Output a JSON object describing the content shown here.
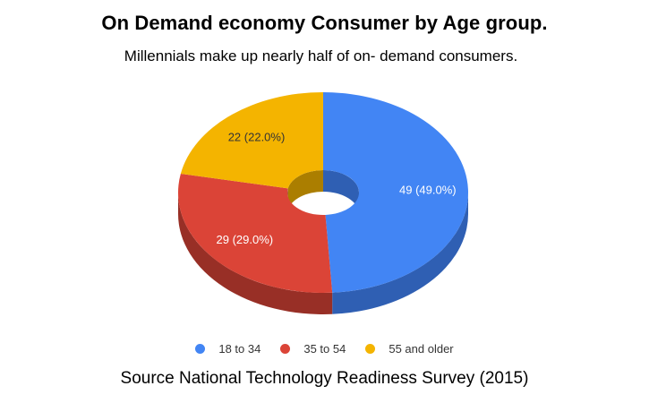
{
  "title": "On Demand economy Consumer by Age group.",
  "subtitle": "Millennials make up nearly half of on- demand consumers.",
  "source": "Source National Technology Readiness Survey (2015)",
  "chart_data": {
    "type": "pie",
    "style": "3d-donut",
    "categories": [
      "18 to 34",
      "35 to 54",
      "55 and older"
    ],
    "values": [
      49,
      29,
      22
    ],
    "data_labels": [
      "49 (49.0%)",
      "29 (29.0%)",
      "22 (22.0%)"
    ],
    "colors": [
      "#4285F4",
      "#DB4437",
      "#F4B400"
    ],
    "side_colors": [
      "#2F5FB3",
      "#982F26",
      "#AB7E00"
    ],
    "label_colors": [
      "#ffffff",
      "#ffffff",
      "#333333"
    ],
    "legend_position": "bottom"
  }
}
